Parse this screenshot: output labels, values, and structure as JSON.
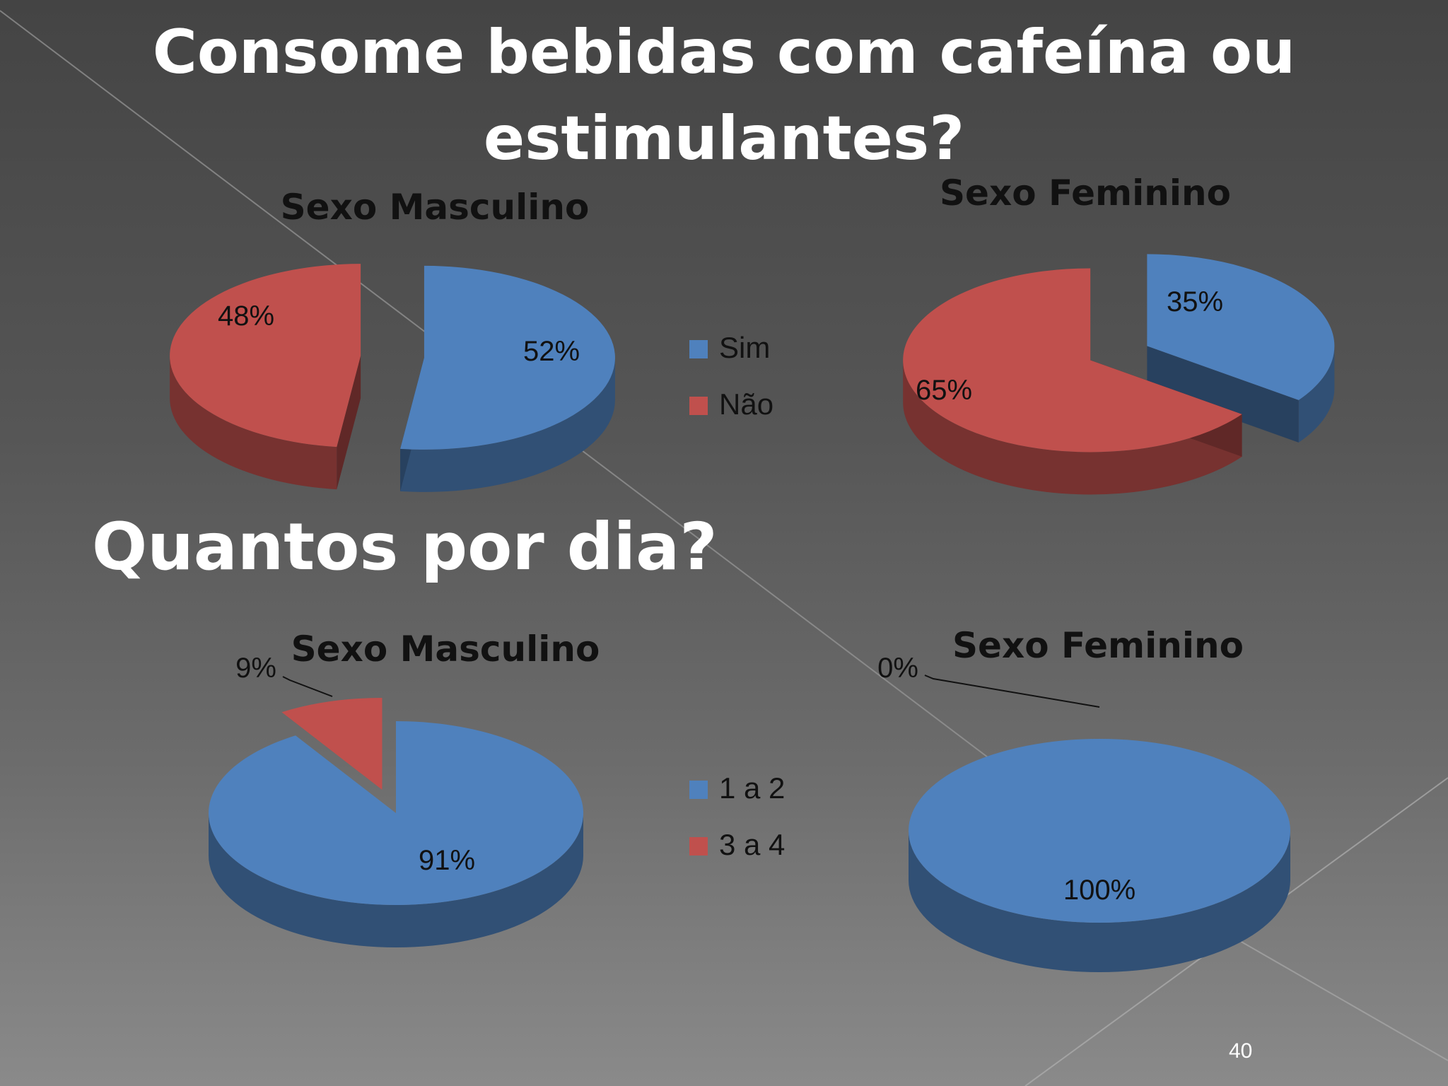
{
  "slide": {
    "title_line1": "Consome bebidas com cafeína ou",
    "title_line2": "estimulantes?",
    "section_title": "Quantos por dia?",
    "page_number": "40"
  },
  "colors": {
    "blue": "#4f81bd",
    "red": "#c0504d"
  },
  "chart_data": [
    {
      "type": "pie",
      "title": "Sexo Masculino",
      "labels": [
        "Sim",
        "Não"
      ],
      "values": [
        52,
        48
      ],
      "data_labels": [
        "52%",
        "48%"
      ],
      "colors": [
        "#4f81bd",
        "#c0504d"
      ]
    },
    {
      "type": "pie",
      "title": "Sexo Feminino",
      "labels": [
        "Sim",
        "Não"
      ],
      "values": [
        35,
        65
      ],
      "data_labels": [
        "35%",
        "65%"
      ],
      "colors": [
        "#4f81bd",
        "#c0504d"
      ]
    },
    {
      "type": "pie",
      "title": "Sexo Masculino",
      "labels": [
        "1 a 2",
        "3 a 4"
      ],
      "values": [
        91,
        9
      ],
      "data_labels": [
        "91%",
        "9%"
      ],
      "colors": [
        "#4f81bd",
        "#c0504d"
      ]
    },
    {
      "type": "pie",
      "title": "Sexo Feminino",
      "labels": [
        "1 a 2",
        "3 a 4"
      ],
      "values": [
        100,
        0
      ],
      "data_labels": [
        "100%",
        "0%"
      ],
      "colors": [
        "#4f81bd",
        "#c0504d"
      ]
    }
  ],
  "legends": [
    {
      "items": [
        "Sim",
        "Não"
      ]
    },
    {
      "items": [
        "1 a 2",
        "3 a 4"
      ]
    }
  ]
}
